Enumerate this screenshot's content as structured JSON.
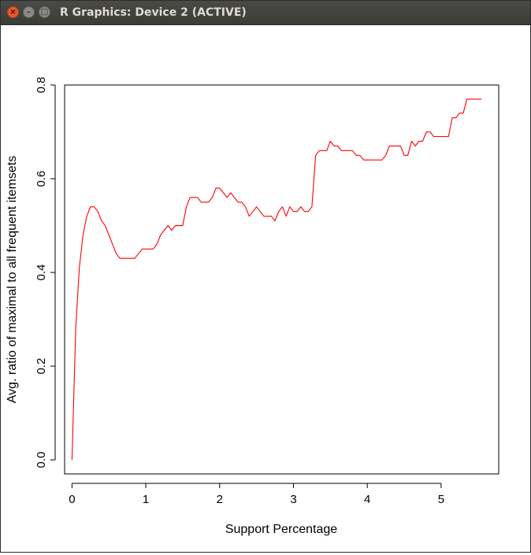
{
  "window": {
    "title": "R Graphics: Device 2 (ACTIVE)"
  },
  "chart_data": {
    "type": "line",
    "title": "",
    "xlabel": "Support Percentage",
    "ylabel": "Avg. ratio of maximal to all frequent itemsets",
    "xlim": [
      -0.1,
      5.78
    ],
    "ylim": [
      -0.03,
      0.8
    ],
    "xticks": [
      "0",
      "1",
      "2",
      "3",
      "4",
      "5"
    ],
    "yticks": [
      "0.0",
      "0.2",
      "0.4",
      "0.6",
      "0.8"
    ],
    "grid": false,
    "legend": "none",
    "series": [
      {
        "color": "#ff0000",
        "x": [
          0.0,
          0.05,
          0.1,
          0.15,
          0.2,
          0.25,
          0.3,
          0.35,
          0.4,
          0.45,
          0.5,
          0.55,
          0.6,
          0.65,
          0.7,
          0.75,
          0.8,
          0.85,
          0.9,
          0.95,
          1.0,
          1.05,
          1.1,
          1.15,
          1.2,
          1.25,
          1.3,
          1.35,
          1.4,
          1.45,
          1.5,
          1.55,
          1.6,
          1.65,
          1.7,
          1.75,
          1.8,
          1.85,
          1.9,
          1.95,
          2.0,
          2.05,
          2.1,
          2.15,
          2.2,
          2.25,
          2.3,
          2.35,
          2.4,
          2.45,
          2.5,
          2.55,
          2.6,
          2.65,
          2.7,
          2.75,
          2.8,
          2.85,
          2.9,
          2.95,
          3.0,
          3.05,
          3.1,
          3.15,
          3.2,
          3.25,
          3.3,
          3.35,
          3.4,
          3.45,
          3.5,
          3.55,
          3.6,
          3.65,
          3.7,
          3.75,
          3.8,
          3.85,
          3.9,
          3.95,
          4.0,
          4.05,
          4.1,
          4.15,
          4.2,
          4.25,
          4.3,
          4.35,
          4.4,
          4.45,
          4.5,
          4.55,
          4.6,
          4.65,
          4.7,
          4.75,
          4.8,
          4.85,
          4.9,
          4.95,
          5.0,
          5.05,
          5.1,
          5.15,
          5.2,
          5.25,
          5.3,
          5.35,
          5.4,
          5.45,
          5.5,
          5.55
        ],
        "y": [
          0.0,
          0.28,
          0.41,
          0.48,
          0.52,
          0.54,
          0.54,
          0.53,
          0.51,
          0.5,
          0.48,
          0.46,
          0.44,
          0.43,
          0.43,
          0.43,
          0.43,
          0.43,
          0.44,
          0.45,
          0.45,
          0.45,
          0.45,
          0.46,
          0.48,
          0.49,
          0.5,
          0.49,
          0.5,
          0.5,
          0.5,
          0.54,
          0.56,
          0.56,
          0.56,
          0.55,
          0.55,
          0.55,
          0.56,
          0.58,
          0.58,
          0.57,
          0.56,
          0.57,
          0.56,
          0.55,
          0.55,
          0.54,
          0.52,
          0.53,
          0.54,
          0.53,
          0.52,
          0.52,
          0.52,
          0.51,
          0.53,
          0.54,
          0.52,
          0.54,
          0.53,
          0.53,
          0.54,
          0.53,
          0.53,
          0.54,
          0.65,
          0.66,
          0.66,
          0.66,
          0.68,
          0.67,
          0.67,
          0.66,
          0.66,
          0.66,
          0.66,
          0.65,
          0.65,
          0.64,
          0.64,
          0.64,
          0.64,
          0.64,
          0.64,
          0.65,
          0.67,
          0.67,
          0.67,
          0.67,
          0.65,
          0.65,
          0.68,
          0.67,
          0.68,
          0.68,
          0.7,
          0.7,
          0.69,
          0.69,
          0.69,
          0.69,
          0.69,
          0.73,
          0.73,
          0.74,
          0.74,
          0.77,
          0.77,
          0.77,
          0.77,
          0.77
        ]
      }
    ]
  }
}
